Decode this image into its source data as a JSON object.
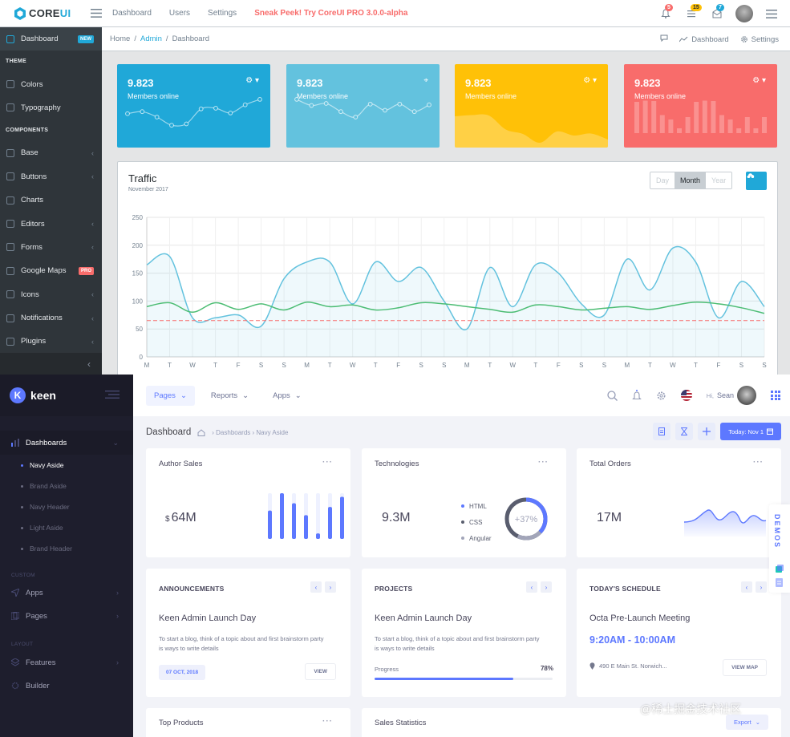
{
  "coreui": {
    "brand": {
      "core": "CORE",
      "ui": "UI"
    },
    "nav": [
      "Dashboard",
      "Users",
      "Settings"
    ],
    "sneak": "Sneak Peek! Try CoreUI PRO 3.0.0-alpha",
    "badges": {
      "bell": "5",
      "list": "15",
      "mail": "7"
    },
    "colors": {
      "bell": "#f86c6b",
      "list": "#ffc107",
      "mail": "#20a8d8"
    },
    "sidebar": {
      "items": [
        {
          "label": "Dashboard",
          "badge": "NEW",
          "badge_color": "#20a8d8"
        },
        {
          "section": "THEME"
        },
        {
          "label": "Colors"
        },
        {
          "label": "Typography"
        },
        {
          "section": "COMPONENTS"
        },
        {
          "label": "Base",
          "caret": "‹"
        },
        {
          "label": "Buttons",
          "caret": "‹"
        },
        {
          "label": "Charts"
        },
        {
          "label": "Editors",
          "caret": "‹"
        },
        {
          "label": "Forms",
          "caret": "‹"
        },
        {
          "label": "Google Maps",
          "badge": "PRO",
          "badge_color": "#f86c6b"
        },
        {
          "label": "Icons",
          "caret": "‹"
        },
        {
          "label": "Notifications",
          "caret": "‹"
        },
        {
          "label": "Plugins",
          "caret": "‹"
        }
      ]
    },
    "breadcrumb": {
      "home": "Home",
      "admin": "Admin",
      "current": "Dashboard"
    },
    "bc_right": {
      "dashboard": "Dashboard",
      "settings": "Settings"
    },
    "cards": [
      {
        "value": "9.823",
        "label": "Members online",
        "color": "#20a8d8",
        "icon": "gear-icon",
        "spark": [
          45,
          48,
          40,
          28,
          30,
          52,
          53,
          46,
          58,
          66
        ]
      },
      {
        "value": "9.823",
        "label": "Members online",
        "color": "#63c2de",
        "icon": "location-icon",
        "spark": [
          66,
          57,
          60,
          48,
          40,
          59,
          50,
          59,
          48,
          58
        ]
      },
      {
        "value": "9.823",
        "label": "Members online",
        "color": "#ffc107",
        "icon": "gear-icon",
        "spark": [
          78,
          81,
          80,
          45,
          34,
          12,
          40,
          30,
          35,
          20
        ]
      },
      {
        "value": "9.823",
        "label": "Members online",
        "color": "#f86c6b",
        "icon": "gear-icon",
        "spark": [
          78,
          81,
          80,
          45,
          34,
          12,
          40,
          78,
          81,
          80,
          45,
          34,
          12,
          40,
          12,
          40
        ]
      }
    ],
    "traffic": {
      "title": "Traffic",
      "subtitle": "November 2017",
      "range": [
        "Day",
        "Month",
        "Year"
      ],
      "active_range": "Month"
    }
  },
  "chart_data": {
    "type": "line",
    "xlabel": "",
    "ylabel": "",
    "ylim": [
      0,
      250
    ],
    "yticks": [
      0,
      50,
      100,
      150,
      200,
      250
    ],
    "categories": [
      "M",
      "T",
      "W",
      "T",
      "F",
      "S",
      "S",
      "M",
      "T",
      "W",
      "T",
      "F",
      "S",
      "S",
      "M",
      "T",
      "W",
      "T",
      "F",
      "S",
      "S",
      "M",
      "T",
      "W",
      "T",
      "F",
      "S",
      "S"
    ],
    "series": [
      {
        "values": [
          165,
          180,
          70,
          70,
          75,
          55,
          140,
          170,
          170,
          95,
          170,
          135,
          160,
          100,
          50,
          160,
          90,
          165,
          150,
          95,
          75,
          175,
          120,
          195,
          170,
          70,
          135,
          90
        ],
        "color": "#63c2de"
      },
      {
        "values": [
          90,
          97,
          80,
          97,
          85,
          95,
          84,
          98,
          90,
          93,
          84,
          88,
          97,
          95,
          90,
          85,
          80,
          93,
          90,
          84,
          87,
          90,
          85,
          92,
          98,
          95,
          88,
          78
        ],
        "color": "#4dbd74"
      },
      {
        "values": [
          65,
          65,
          65,
          65,
          65,
          65,
          65,
          65,
          65,
          65,
          65,
          65,
          65,
          65,
          65,
          65,
          65,
          65,
          65,
          65,
          65,
          65,
          65,
          65,
          65,
          65,
          65,
          65
        ],
        "color": "#f86c6b"
      }
    ],
    "grid": true,
    "legend": "none"
  },
  "keen": {
    "brand": "keen",
    "sidebar": {
      "dashboards": "Dashboards",
      "subs": [
        "Navy Aside",
        "Brand Aside",
        "Navy Header",
        "Light Aside",
        "Brand Header"
      ],
      "custom": "CUSTOM",
      "apps": "Apps",
      "pages": "Pages",
      "layout": "LAYOUT",
      "features": "Features",
      "builder": "Builder"
    },
    "top": {
      "pages": "Pages",
      "reports": "Reports",
      "apps": "Apps",
      "hi": "Hi,",
      "user": "Sean"
    },
    "subheader": {
      "title": "Dashboard",
      "crumb": "› Dashboards › Navy Aside",
      "today": "Today: Nov 1"
    },
    "author_sales": {
      "title": "Author Sales",
      "currency": "$",
      "value": "64M",
      "bars": [
        0.62,
        1.0,
        0.78,
        0.52,
        0.12,
        0.7,
        0.92
      ]
    },
    "technologies": {
      "title": "Technologies",
      "value": "9.3M",
      "legend": [
        "HTML",
        "CSS",
        "Angular"
      ],
      "legend_colors": [
        "#5d78ff",
        "#595d6e",
        "#a2a5b9"
      ],
      "percent": "+37%",
      "ring_share": 0.37
    },
    "total_orders": {
      "title": "Total Orders",
      "value": "17M"
    },
    "announcements": {
      "title": "ANNOUNCEMENTS",
      "headline": "Keen Admin Launch Day",
      "text": "To start a blog, think of a topic about and first brainstorm party is ways to write details",
      "date": "07 OCT, 2018",
      "view": "VIEW"
    },
    "projects": {
      "title": "PROJECTS",
      "headline": "Keen Admin Launch Day",
      "text": "To start a blog, think of a topic about and first brainstorm party is ways to write details",
      "progress_label": "Progress",
      "progress": "78%",
      "progress_value": 0.78
    },
    "schedule": {
      "title": "TODAY'S SCHEDULE",
      "headline": "Octa Pre-Launch Meeting",
      "time": "9:20AM - 10:00AM",
      "address": "490 E Main St. Norwich...",
      "view_map": "VIEW MAP"
    },
    "top_products": {
      "title": "Top Products"
    },
    "sales_stats": {
      "title": "Sales Statistics",
      "export": "Export"
    },
    "demos": "DEMOS",
    "watermark": "@稀土掘金技术社区"
  }
}
